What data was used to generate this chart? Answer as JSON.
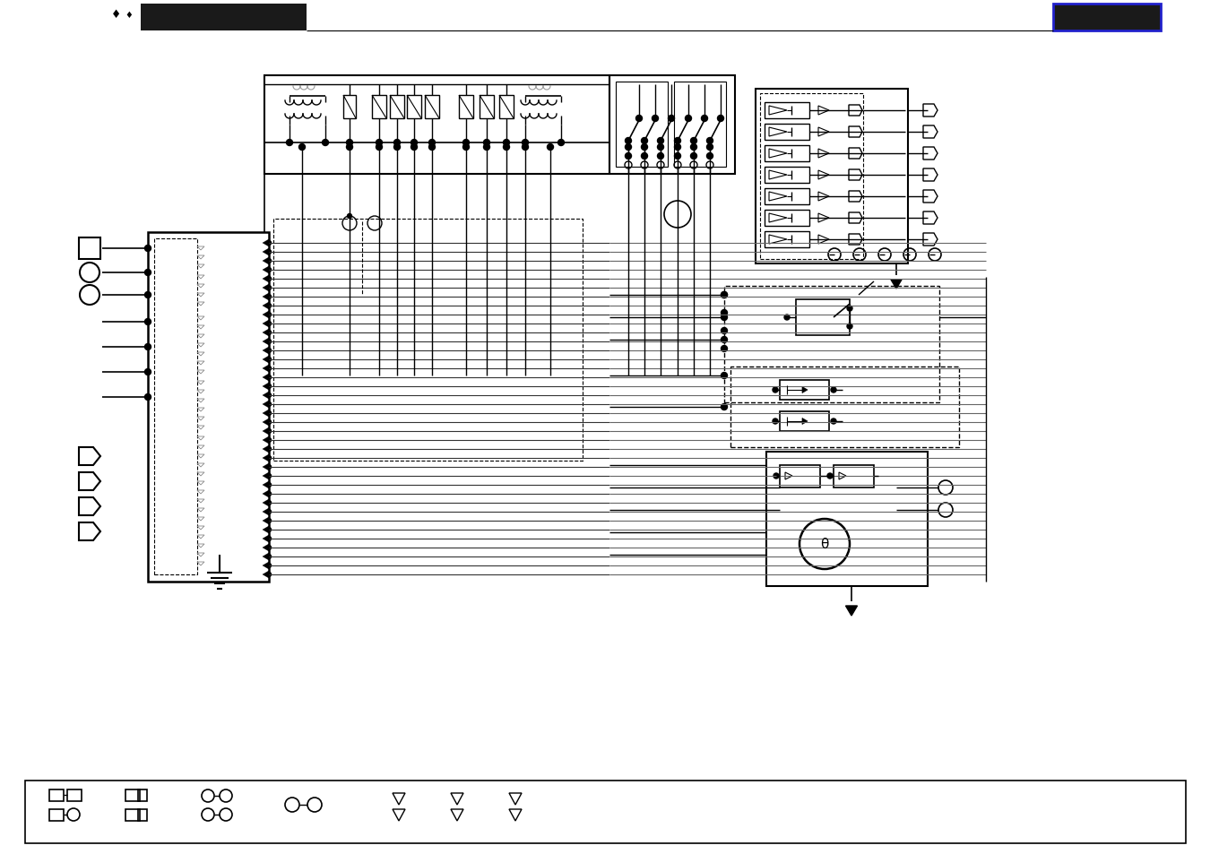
{
  "bg": "#ffffff",
  "lc": "#000000",
  "gray": "#888888"
}
